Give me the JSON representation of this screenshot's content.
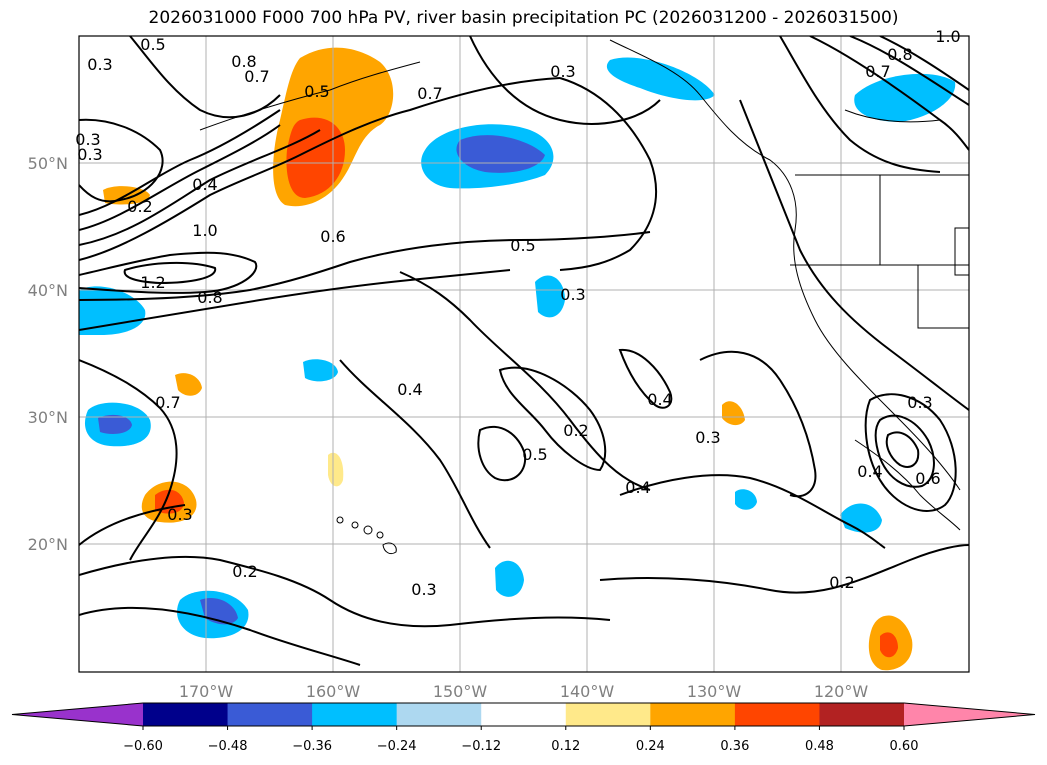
{
  "title": "2026031000 F000 700 hPa PV, river basin precipitation PC (2026031200 - 2026031500)",
  "map": {
    "lon_range": [
      -180,
      -110
    ],
    "lat_range": [
      10,
      60
    ],
    "lat_ticks": [
      "20°N",
      "30°N",
      "40°N",
      "50°N"
    ],
    "lon_ticks": [
      "170°W",
      "160°W",
      "150°W",
      "140°W",
      "130°W",
      "120°W"
    ],
    "contour_labels": [
      "0.5",
      "0.8",
      "0.7",
      "0.3",
      "0.3",
      "0.5",
      "0.7",
      "0.3",
      "0.8",
      "1.0",
      "0.7",
      "0.3",
      "0.4",
      "1.0",
      "0.6",
      "0.5",
      "1.2",
      "0.8",
      "0.3",
      "0.2",
      "0.7",
      "0.4",
      "0.4",
      "0.2",
      "0.5",
      "0.3",
      "0.3",
      "0.4",
      "0.6",
      "0.4",
      "0.3",
      "0.2",
      "0.2",
      "0.3"
    ]
  },
  "colorbar": {
    "ticks": [
      "−0.60",
      "−0.48",
      "−0.36",
      "−0.24",
      "−0.12",
      "0.12",
      "0.24",
      "0.36",
      "0.48",
      "0.60"
    ],
    "colors": [
      "#9932cc",
      "#00008b",
      "#3a5bd6",
      "#00bfff",
      "#add8f0",
      "#ffffff",
      "#ffe98a",
      "#ffa500",
      "#ff4500",
      "#b22222",
      "#ff85aa"
    ]
  }
}
